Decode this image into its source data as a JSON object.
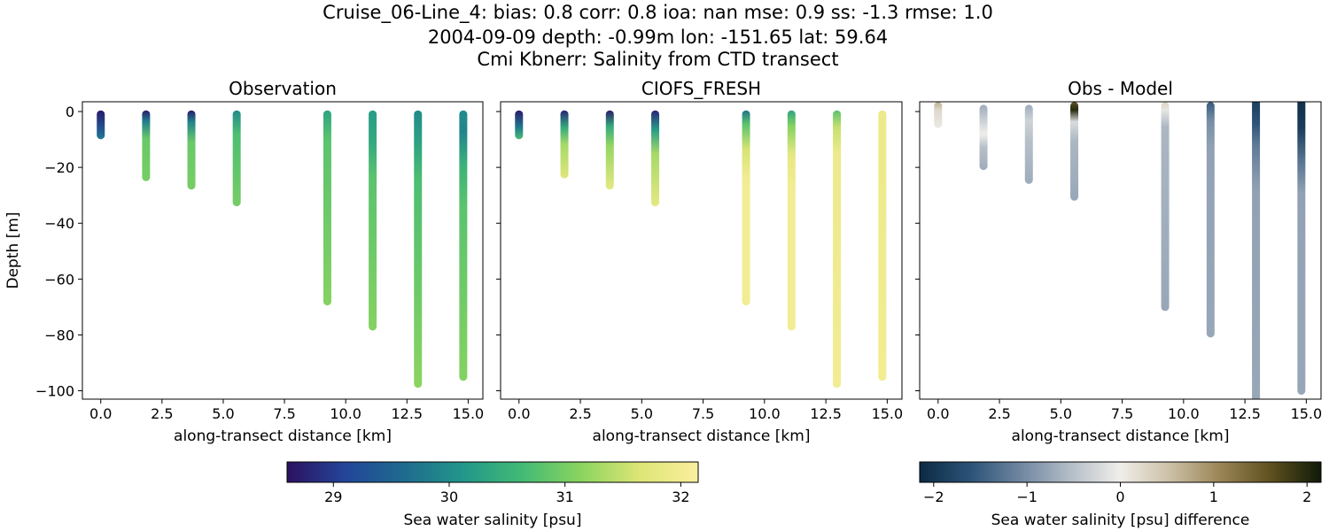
{
  "figure": {
    "title_lines": [
      "Cruise_06-Line_4: bias: 0.8  corr: 0.8  ioa: nan  mse: 0.9  ss: -1.3  rmse: 1.0",
      "2004-09-09 depth: -0.99m lon: -151.65 lat: 59.64",
      "Cmi Kbnerr: Salinity from CTD transect"
    ]
  },
  "chart_data": [
    {
      "type": "scatter",
      "title": "Observation",
      "xlabel": "along-transect distance [km]",
      "ylabel": "Depth [m]",
      "xlim": [
        -0.75,
        15.6
      ],
      "ylim": [
        -103,
        3.5
      ],
      "xticks": [
        "0.0",
        "2.5",
        "5.0",
        "7.5",
        "10.0",
        "12.5",
        "15.0"
      ],
      "yticks": [
        "0",
        "−20",
        "−40",
        "−60",
        "−80",
        "−100"
      ],
      "color_scale": "salinity",
      "profiles": [
        {
          "x": 0.0,
          "top": -1,
          "bottom": -8.5,
          "colors": [
            [
              0,
              28.7
            ],
            [
              0.7,
              29.4
            ],
            [
              1,
              29.8
            ]
          ]
        },
        {
          "x": 1.85,
          "top": -1,
          "bottom": -23.5,
          "colors": [
            [
              0,
              28.7
            ],
            [
              0.15,
              29.8
            ],
            [
              0.4,
              30.9
            ],
            [
              1,
              31.0
            ]
          ]
        },
        {
          "x": 3.7,
          "top": -1,
          "bottom": -26.5,
          "colors": [
            [
              0,
              28.7
            ],
            [
              0.15,
              29.9
            ],
            [
              0.4,
              30.9
            ],
            [
              1,
              31.0
            ]
          ]
        },
        {
          "x": 5.55,
          "top": -1,
          "bottom": -32.5,
          "colors": [
            [
              0,
              30.0
            ],
            [
              0.25,
              30.7
            ],
            [
              1,
              31.0
            ]
          ]
        },
        {
          "x": 9.25,
          "top": -1,
          "bottom": -68.0,
          "colors": [
            [
              0,
              30.3
            ],
            [
              0.15,
              30.8
            ],
            [
              1,
              31.1
            ]
          ]
        },
        {
          "x": 11.1,
          "top": -1,
          "bottom": -77.0,
          "colors": [
            [
              0,
              30.2
            ],
            [
              0.15,
              30.4
            ],
            [
              0.3,
              30.8
            ],
            [
              1,
              31.1
            ]
          ]
        },
        {
          "x": 12.95,
          "top": -1,
          "bottom": -97.5,
          "colors": [
            [
              0,
              30.0
            ],
            [
              0.12,
              30.3
            ],
            [
              0.25,
              30.7
            ],
            [
              1,
              31.15
            ]
          ]
        },
        {
          "x": 14.8,
          "top": -1,
          "bottom": -95.0,
          "colors": [
            [
              0,
              30.0
            ],
            [
              0.08,
              29.9
            ],
            [
              0.2,
              30.5
            ],
            [
              0.35,
              30.8
            ],
            [
              1,
              31.1
            ]
          ]
        }
      ]
    },
    {
      "type": "scatter",
      "title": "CIOFS_FRESH",
      "xlabel": "along-transect distance [km]",
      "ylabel": "",
      "xlim": [
        -0.75,
        15.6
      ],
      "ylim": [
        -103,
        3.5
      ],
      "xticks": [
        "0.0",
        "2.5",
        "5.0",
        "7.5",
        "10.0",
        "12.5",
        "15.0"
      ],
      "yticks": [],
      "color_scale": "salinity",
      "profiles": [
        {
          "x": 0.0,
          "top": -1,
          "bottom": -8.5,
          "colors": [
            [
              0,
              28.7
            ],
            [
              0.6,
              29.8
            ],
            [
              1,
              30.7
            ]
          ]
        },
        {
          "x": 1.85,
          "top": -1,
          "bottom": -22.5,
          "colors": [
            [
              0,
              28.8
            ],
            [
              0.25,
              30.4
            ],
            [
              0.5,
              31.3
            ],
            [
              1,
              31.7
            ]
          ]
        },
        {
          "x": 3.7,
          "top": -1,
          "bottom": -26.5,
          "colors": [
            [
              0,
              28.7
            ],
            [
              0.2,
              30.4
            ],
            [
              0.45,
              31.2
            ],
            [
              1,
              31.8
            ]
          ]
        },
        {
          "x": 5.55,
          "top": -1,
          "bottom": -32.5,
          "colors": [
            [
              0,
              28.8
            ],
            [
              0.2,
              30.2
            ],
            [
              0.45,
              31.3
            ],
            [
              1,
              31.8
            ]
          ]
        },
        {
          "x": 9.25,
          "top": -1,
          "bottom": -68.0,
          "colors": [
            [
              0,
              29.7
            ],
            [
              0.07,
              30.8
            ],
            [
              0.2,
              31.6
            ],
            [
              0.35,
              32.0
            ],
            [
              1,
              32.0
            ]
          ]
        },
        {
          "x": 11.1,
          "top": -1,
          "bottom": -77.0,
          "colors": [
            [
              0,
              30.3
            ],
            [
              0.07,
              31.1
            ],
            [
              0.2,
              31.8
            ],
            [
              0.35,
              32.0
            ],
            [
              1,
              32.0
            ]
          ]
        },
        {
          "x": 12.95,
          "top": -1,
          "bottom": -97.5,
          "colors": [
            [
              0,
              30.8
            ],
            [
              0.06,
              31.5
            ],
            [
              0.15,
              31.9
            ],
            [
              1,
              32.0
            ]
          ]
        },
        {
          "x": 14.8,
          "top": -1,
          "bottom": -95.0,
          "colors": [
            [
              0,
              31.9
            ],
            [
              1,
              32.0
            ]
          ]
        }
      ]
    },
    {
      "type": "scatter",
      "title": "Obs - Model",
      "xlabel": "along-transect distance [km]",
      "ylabel": "",
      "xlim": [
        -0.75,
        15.6
      ],
      "ylim": [
        -103,
        3.5
      ],
      "xticks": [
        "0.0",
        "2.5",
        "5.0",
        "7.5",
        "10.0",
        "12.5",
        "15.0"
      ],
      "yticks": [],
      "color_scale": "difference",
      "profiles": [
        {
          "x": 0.0,
          "top": 2,
          "bottom": -4.5,
          "colors": [
            [
              0,
              0.7
            ],
            [
              0.3,
              0.25
            ],
            [
              1,
              -0.05
            ]
          ]
        },
        {
          "x": 1.85,
          "top": 1,
          "bottom": -19.5,
          "colors": [
            [
              0,
              -0.7
            ],
            [
              0.2,
              -0.4
            ],
            [
              0.45,
              0.0
            ],
            [
              0.65,
              -0.5
            ],
            [
              1,
              -0.7
            ]
          ]
        },
        {
          "x": 3.7,
          "top": 1,
          "bottom": -24.5,
          "colors": [
            [
              0,
              -0.7
            ],
            [
              0.2,
              -0.3
            ],
            [
              0.45,
              -0.5
            ],
            [
              1,
              -0.7
            ]
          ]
        },
        {
          "x": 5.55,
          "top": 2,
          "bottom": -30.5,
          "colors": [
            [
              0,
              1.6
            ],
            [
              0.08,
              2.0
            ],
            [
              0.2,
              -0.2
            ],
            [
              0.4,
              -0.6
            ],
            [
              1,
              -0.75
            ]
          ]
        },
        {
          "x": 9.25,
          "top": 2,
          "bottom": -70.0,
          "colors": [
            [
              0,
              0.3
            ],
            [
              0.04,
              -0.1
            ],
            [
              0.12,
              -0.6
            ],
            [
              1,
              -0.75
            ]
          ]
        },
        {
          "x": 11.1,
          "top": 2,
          "bottom": -79.5,
          "colors": [
            [
              0,
              -1.5
            ],
            [
              0.08,
              -1.0
            ],
            [
              0.2,
              -0.8
            ],
            [
              1,
              -0.75
            ]
          ]
        },
        {
          "x": 12.95,
          "top": 3,
          "bottom": -103,
          "colors": [
            [
              0,
              -1.9
            ],
            [
              0.08,
              -1.6
            ],
            [
              0.15,
              -1.2
            ],
            [
              0.3,
              -0.8
            ],
            [
              1,
              -0.75
            ]
          ]
        },
        {
          "x": 14.8,
          "top": 3,
          "bottom": -100,
          "colors": [
            [
              0,
              -2.1
            ],
            [
              0.1,
              -1.9
            ],
            [
              0.2,
              -1.3
            ],
            [
              0.32,
              -0.8
            ],
            [
              1,
              -0.75
            ]
          ]
        }
      ]
    }
  ],
  "colorbars": [
    {
      "label": "Sea water salinity [psu]",
      "ticks": [
        "29",
        "30",
        "31",
        "32"
      ],
      "min": 28.6,
      "max": 32.15
    },
    {
      "label": "Sea water salinity [psu] difference",
      "ticks": [
        "−2",
        "−1",
        "0",
        "1",
        "2"
      ],
      "min": -2.15,
      "max": 2.15
    }
  ],
  "colors": {
    "salinity_stops": [
      "#2c1160",
      "#23469a",
      "#1f6b8e",
      "#22978a",
      "#42ba75",
      "#8ad45f",
      "#dde575",
      "#fbef9f"
    ],
    "difference_stops": [
      "#0c2a44",
      "#2b5276",
      "#6f86a0",
      "#b3bdc7",
      "#f0eeea",
      "#cbbfa5",
      "#9a8455",
      "#5f501f",
      "#0f1a08"
    ]
  }
}
